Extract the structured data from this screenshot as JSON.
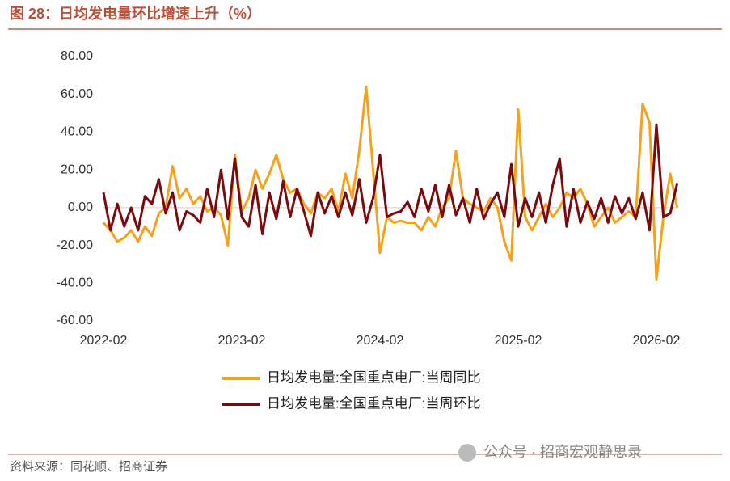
{
  "chart_data": {
    "type": "line",
    "title": "图 28：日均发电量环比增速上升（%）",
    "source": "资料来源：同花顺、招商证券",
    "watermark": "公众号 · 招商宏观静思录",
    "categories": [
      "2022-02",
      null,
      null,
      null,
      null,
      null,
      null,
      null,
      null,
      null,
      null,
      null,
      null,
      null,
      null,
      null,
      null,
      null,
      null,
      null,
      "2023-02",
      null,
      null,
      null,
      null,
      null,
      null,
      null,
      null,
      null,
      null,
      null,
      null,
      null,
      null,
      null,
      null,
      null,
      null,
      null,
      "2024-02",
      null,
      null,
      null,
      null,
      null,
      null,
      null,
      null,
      null,
      null,
      null,
      null,
      null,
      null,
      null,
      null,
      null,
      null,
      null,
      "2025-02",
      null,
      null,
      null,
      null,
      null,
      null,
      null,
      null,
      null,
      null,
      null,
      null,
      null,
      null,
      null,
      null,
      null,
      null,
      null,
      "2026-02",
      null,
      null,
      null
    ],
    "series": [
      {
        "name": "日均发电量:全国重点电厂:当周同比",
        "color": "#f5a11c",
        "values": [
          -8,
          -12,
          -18,
          -16,
          -12,
          -18,
          -10,
          -15,
          -3,
          0,
          22,
          5,
          10,
          2,
          6,
          -2,
          0,
          -4,
          -20,
          28,
          -2,
          5,
          20,
          10,
          18,
          28,
          15,
          8,
          10,
          2,
          -3,
          8,
          5,
          10,
          -2,
          18,
          5,
          30,
          64,
          20,
          -24,
          -5,
          -8,
          -7,
          -8,
          -8,
          -12,
          -5,
          -10,
          0,
          5,
          30,
          5,
          2,
          0,
          -2,
          5,
          0,
          -18,
          -28,
          52,
          -5,
          -12,
          -5,
          2,
          -5,
          0,
          8,
          5,
          10,
          2,
          -10,
          -5,
          0,
          -8,
          -5,
          -2,
          -5,
          55,
          45,
          -38,
          -5,
          18,
          0
        ]
      },
      {
        "name": "日均发电量:全国重点电厂:当周环比",
        "color": "#7a0a0e",
        "values": [
          8,
          -12,
          2,
          -10,
          0,
          -12,
          6,
          2,
          15,
          -3,
          8,
          -12,
          -2,
          -4,
          -8,
          10,
          -5,
          20,
          -6,
          26,
          -5,
          -10,
          12,
          -14,
          8,
          -6,
          14,
          -5,
          10,
          -2,
          -15,
          8,
          -3,
          6,
          -5,
          8,
          -4,
          15,
          -8,
          5,
          28,
          -5,
          -3,
          -2,
          3,
          -5,
          10,
          -2,
          12,
          -5,
          12,
          -4,
          5,
          -8,
          10,
          -6,
          2,
          8,
          -5,
          23,
          -10,
          5,
          -5,
          8,
          -8,
          12,
          26,
          -10,
          10,
          -8,
          3,
          -6,
          5,
          -8,
          6,
          -3,
          5,
          -6,
          8,
          -12,
          44,
          -5,
          -3,
          13
        ]
      }
    ],
    "ylim": [
      -60,
      80
    ],
    "yticks": [
      {
        "value": -60,
        "label": "-60.00"
      },
      {
        "value": -40,
        "label": "-40.00"
      },
      {
        "value": -20,
        "label": "-20.00"
      },
      {
        "value": 0,
        "label": "0.00"
      },
      {
        "value": 20,
        "label": "20.00"
      },
      {
        "value": 40,
        "label": "40.00"
      },
      {
        "value": 60,
        "label": "60.00"
      },
      {
        "value": 80,
        "label": "80.00"
      }
    ]
  }
}
